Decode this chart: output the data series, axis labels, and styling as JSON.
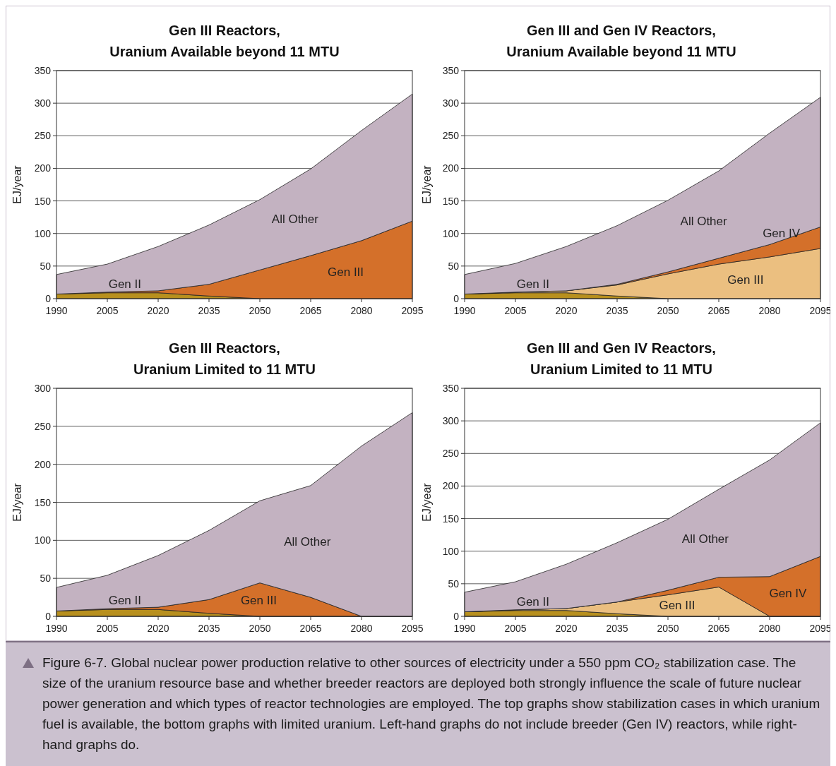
{
  "chart_data": [
    {
      "type": "area",
      "stacked": true,
      "title": "Gen III Reactors,\nUranium Available beyond 11 MTU",
      "ylabel": "EJ/year",
      "x": [
        1990,
        2005,
        2020,
        2035,
        2050,
        2065,
        2080,
        2095
      ],
      "xlim": [
        1990,
        2095
      ],
      "xticks": [
        1990,
        2005,
        2020,
        2035,
        2050,
        2065,
        2080,
        2095
      ],
      "ylim": [
        0,
        350
      ],
      "yticks": [
        0,
        50,
        100,
        150,
        200,
        250,
        300,
        350
      ],
      "grid": "y",
      "series": [
        {
          "name": "Gen II",
          "color": "#b8901e",
          "values": [
            7,
            9,
            9,
            4,
            0,
            0,
            0,
            0
          ]
        },
        {
          "name": "Gen III",
          "color": "#d4702a",
          "values": [
            0,
            1,
            3,
            18,
            44,
            66,
            89,
            119
          ]
        },
        {
          "name": "All Other",
          "color": "#c3b2c1",
          "values": [
            30,
            43,
            68,
            91,
            108,
            133,
            169,
            195
          ]
        }
      ],
      "annotations": [
        "Figure 6-7. Global nuclear power production relative to other sources of electricity under a 550 ppm CO₂ stabilization case. The size of the uranium resource base and whether breeder reactors are deployed both strongly influence the scale of future nuclear power generation and which types of reactor technologies are employed. The top graphs show stabilization cases in which uranium fuel is available, the bottom graphs with limited uranium. Left-hand graphs do not include breeder (Gen IV) reactors, while right-hand graphs do."
      ]
    },
    {
      "type": "area",
      "stacked": true,
      "title": "Gen III and Gen IV Reactors,\nUranium Available beyond 11 MTU",
      "ylabel": "EJ/year",
      "x": [
        1990,
        2005,
        2020,
        2035,
        2050,
        2065,
        2080,
        2095
      ],
      "xlim": [
        1990,
        2095
      ],
      "xticks": [
        1990,
        2005,
        2020,
        2035,
        2050,
        2065,
        2080,
        2095
      ],
      "ylim": [
        0,
        350
      ],
      "yticks": [
        0,
        50,
        100,
        150,
        200,
        250,
        300,
        350
      ],
      "grid": "y",
      "series": [
        {
          "name": "Gen II",
          "color": "#b8901e",
          "values": [
            7,
            9,
            9,
            4,
            0,
            0,
            0,
            0
          ]
        },
        {
          "name": "Gen III",
          "color": "#ebbf80",
          "values": [
            0,
            1,
            3,
            17,
            38,
            53,
            64,
            77
          ]
        },
        {
          "name": "Gen IV",
          "color": "#d4702a",
          "values": [
            0,
            0,
            0,
            1,
            3,
            9,
            19,
            33
          ]
        },
        {
          "name": "All Other",
          "color": "#c3b2c1",
          "values": [
            30,
            44,
            68,
            90,
            110,
            134,
            171,
            199
          ]
        }
      ]
    },
    {
      "type": "area",
      "stacked": true,
      "title": "Gen III Reactors,\nUranium Limited to 11 MTU",
      "ylabel": "EJ/year",
      "x": [
        1990,
        2005,
        2020,
        2035,
        2050,
        2065,
        2080,
        2095
      ],
      "xlim": [
        1990,
        2095
      ],
      "xticks": [
        1990,
        2005,
        2020,
        2035,
        2050,
        2065,
        2080,
        2095
      ],
      "ylim": [
        0,
        300
      ],
      "yticks": [
        0,
        50,
        100,
        150,
        200,
        250,
        300
      ],
      "grid": "y",
      "series": [
        {
          "name": "Gen II",
          "color": "#b8901e",
          "values": [
            7,
            9,
            9,
            4,
            0,
            0,
            0,
            0
          ]
        },
        {
          "name": "Gen III",
          "color": "#d4702a",
          "values": [
            0,
            1,
            3,
            18,
            44,
            25,
            0,
            0
          ]
        },
        {
          "name": "All Other",
          "color": "#c3b2c1",
          "values": [
            31,
            44,
            68,
            91,
            108,
            147,
            224,
            268
          ]
        }
      ]
    },
    {
      "type": "area",
      "stacked": true,
      "title": "Gen III and Gen IV Reactors,\nUranium Limited to 11 MTU",
      "ylabel": "EJ/year",
      "x": [
        1990,
        2005,
        2020,
        2035,
        2050,
        2065,
        2080,
        2095
      ],
      "xlim": [
        1990,
        2095
      ],
      "xticks": [
        1990,
        2005,
        2020,
        2035,
        2050,
        2065,
        2080,
        2095
      ],
      "ylim": [
        0,
        350
      ],
      "yticks": [
        0,
        50,
        100,
        150,
        200,
        250,
        300,
        350
      ],
      "grid": "y",
      "series": [
        {
          "name": "Gen II",
          "color": "#b8901e",
          "values": [
            7,
            9,
            9,
            4,
            0,
            0,
            0,
            0
          ]
        },
        {
          "name": "Gen III",
          "color": "#ebbf80",
          "values": [
            0,
            1,
            3,
            18,
            33,
            45,
            0,
            0
          ]
        },
        {
          "name": "Gen IV",
          "color": "#d4702a",
          "values": [
            0,
            0,
            0,
            0,
            7,
            15,
            61,
            92
          ]
        },
        {
          "name": "All Other",
          "color": "#c3b2c1",
          "values": [
            30,
            43,
            68,
            91,
            109,
            135,
            179,
            205
          ]
        }
      ]
    }
  ]
}
